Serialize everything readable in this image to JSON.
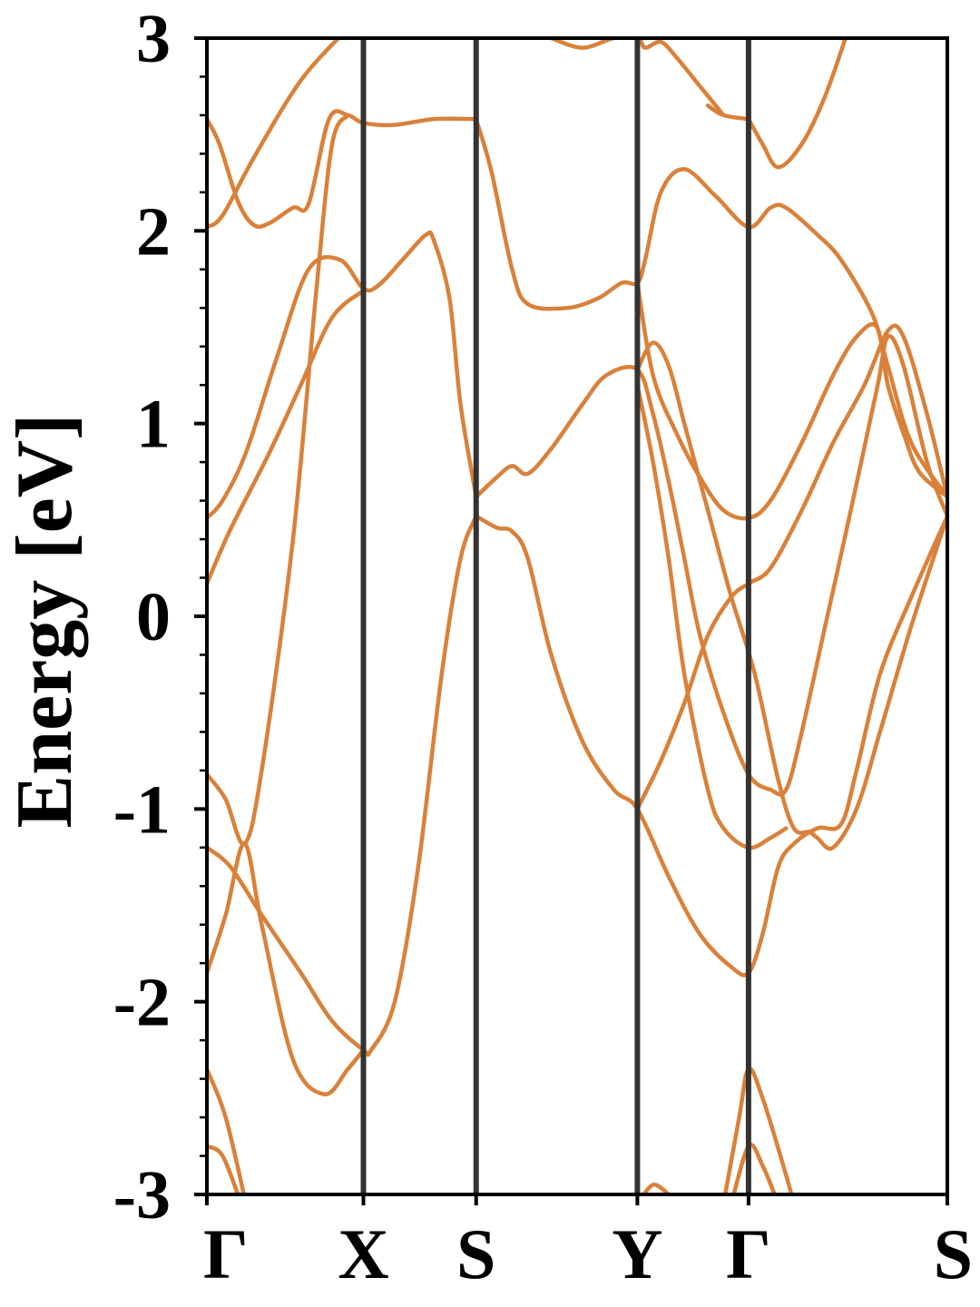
{
  "chart_data": {
    "type": "line",
    "title": "",
    "xlabel": "",
    "ylabel": "Energy [eV]",
    "ylim": [
      -3,
      3
    ],
    "xlim": [
      0,
      4.73
    ],
    "yticks": [
      {
        "value": 3,
        "label": "3"
      },
      {
        "value": 2,
        "label": "2"
      },
      {
        "value": 1,
        "label": "1"
      },
      {
        "value": 0,
        "label": "0"
      },
      {
        "value": -1,
        "label": "-1"
      },
      {
        "value": -2,
        "label": "-2"
      },
      {
        "value": -3,
        "label": "-3"
      }
    ],
    "yminor_step": 0.2,
    "kpoints": [
      {
        "label": "Γ",
        "x": 0.0
      },
      {
        "label": "X",
        "x": 1.0
      },
      {
        "label": "S",
        "x": 1.72
      },
      {
        "label": "Y",
        "x": 2.75
      },
      {
        "label": "Γ",
        "x": 3.46
      },
      {
        "label": "S",
        "x": 4.73
      }
    ],
    "grid": false,
    "line_color": "#d9813a",
    "bright_line_color": "#f08020",
    "series": [
      {
        "values": [
          [
            0,
            2.02
          ],
          [
            0.1,
            2.08
          ],
          [
            0.3,
            2.38
          ],
          [
            0.6,
            2.78
          ],
          [
            0.9,
            3.05
          ]
        ]
      },
      {
        "values": [
          [
            0,
            2.58
          ],
          [
            0.08,
            2.45
          ],
          [
            0.2,
            2.15
          ],
          [
            0.3,
            2.03
          ],
          [
            0.4,
            2.04
          ],
          [
            0.55,
            2.12
          ],
          [
            0.65,
            2.14
          ],
          [
            0.78,
            2.58
          ],
          [
            0.9,
            2.6
          ],
          [
            1.0,
            2.56
          ],
          [
            1.2,
            2.55
          ],
          [
            1.45,
            2.58
          ],
          [
            1.72,
            2.58
          ]
        ]
      },
      {
        "values": [
          [
            0,
            0.51
          ],
          [
            0.1,
            0.6
          ],
          [
            0.25,
            0.85
          ],
          [
            0.45,
            1.35
          ],
          [
            0.65,
            1.8
          ],
          [
            0.85,
            1.85
          ],
          [
            1.0,
            1.7
          ],
          [
            1.1,
            1.72
          ],
          [
            1.25,
            1.85
          ],
          [
            1.4,
            1.98
          ],
          [
            1.45,
            1.95
          ],
          [
            1.55,
            1.65
          ],
          [
            1.62,
            1.1
          ],
          [
            1.72,
            0.62
          ]
        ]
      },
      {
        "values": [
          [
            0,
            0.17
          ],
          [
            0.15,
            0.45
          ],
          [
            0.4,
            0.85
          ],
          [
            0.6,
            1.2
          ],
          [
            0.8,
            1.55
          ],
          [
            1.0,
            1.69
          ]
        ]
      },
      {
        "values": [
          [
            0,
            -0.82
          ],
          [
            0.12,
            -0.95
          ],
          [
            0.24,
            -1.18
          ],
          [
            0.35,
            -0.8
          ],
          [
            0.55,
            0.4
          ],
          [
            0.7,
            1.7
          ],
          [
            0.8,
            2.45
          ],
          [
            0.9,
            2.6
          ]
        ]
      },
      {
        "values": [
          [
            0,
            -1.2
          ],
          [
            0.15,
            -1.3
          ],
          [
            0.35,
            -1.55
          ],
          [
            0.6,
            -1.85
          ],
          [
            0.8,
            -2.1
          ],
          [
            1.0,
            -2.25
          ],
          [
            1.05,
            -2.25
          ],
          [
            1.2,
            -2.0
          ],
          [
            1.35,
            -1.3
          ],
          [
            1.5,
            -0.3
          ],
          [
            1.62,
            0.3
          ],
          [
            1.72,
            0.52
          ]
        ]
      },
      {
        "values": [
          [
            0,
            -1.85
          ],
          [
            0.12,
            -1.55
          ],
          [
            0.24,
            -1.18
          ],
          [
            0.35,
            -1.6
          ],
          [
            0.55,
            -2.3
          ],
          [
            0.75,
            -2.48
          ],
          [
            0.9,
            -2.35
          ],
          [
            1.0,
            -2.25
          ]
        ]
      },
      {
        "values": [
          [
            0,
            -2.35
          ],
          [
            0.12,
            -2.6
          ],
          [
            0.25,
            -3.05
          ]
        ]
      },
      {
        "values": [
          [
            0,
            -2.75
          ],
          [
            0.1,
            -2.8
          ],
          [
            0.22,
            -3.05
          ]
        ]
      },
      {
        "values": [
          [
            1.72,
            2.58
          ],
          [
            1.82,
            2.3
          ],
          [
            1.95,
            1.8
          ],
          [
            2.05,
            1.62
          ],
          [
            2.3,
            1.6
          ],
          [
            2.5,
            1.65
          ],
          [
            2.65,
            1.73
          ],
          [
            2.75,
            1.73
          ],
          [
            2.8,
            1.85
          ],
          [
            2.9,
            2.2
          ],
          [
            3.05,
            2.32
          ],
          [
            3.25,
            2.18
          ],
          [
            3.46,
            2.02
          ],
          [
            3.6,
            2.12
          ],
          [
            3.7,
            2.12
          ],
          [
            3.9,
            1.98
          ],
          [
            4.05,
            1.85
          ],
          [
            4.25,
            1.57
          ],
          [
            4.35,
            1.3
          ],
          [
            4.5,
            0.9
          ],
          [
            4.73,
            0.62
          ]
        ]
      },
      {
        "values": [
          [
            1.72,
            0.62
          ],
          [
            1.85,
            0.72
          ],
          [
            1.95,
            0.78
          ],
          [
            2.05,
            0.74
          ],
          [
            2.2,
            0.87
          ],
          [
            2.4,
            1.1
          ],
          [
            2.55,
            1.25
          ],
          [
            2.75,
            1.28
          ],
          [
            2.85,
            1.05
          ],
          [
            2.95,
            0.7
          ],
          [
            3.05,
            0.3
          ],
          [
            3.15,
            -0.1
          ],
          [
            3.3,
            -0.5
          ],
          [
            3.46,
            -0.82
          ],
          [
            3.6,
            -0.9
          ],
          [
            3.7,
            -0.9
          ],
          [
            3.8,
            -0.6
          ],
          [
            3.95,
            -0.05
          ],
          [
            4.1,
            0.5
          ],
          [
            4.28,
            1.18
          ],
          [
            4.35,
            1.45
          ],
          [
            4.45,
            1.3
          ],
          [
            4.6,
            0.8
          ],
          [
            4.73,
            0.52
          ]
        ]
      },
      {
        "values": [
          [
            1.72,
            0.52
          ],
          [
            1.85,
            0.46
          ],
          [
            1.95,
            0.44
          ],
          [
            2.05,
            0.3
          ],
          [
            2.2,
            -0.2
          ],
          [
            2.4,
            -0.65
          ],
          [
            2.6,
            -0.9
          ],
          [
            2.75,
            -1.0
          ],
          [
            2.95,
            -1.35
          ],
          [
            3.15,
            -1.65
          ],
          [
            3.35,
            -1.82
          ],
          [
            3.46,
            -1.85
          ],
          [
            3.55,
            -1.65
          ],
          [
            3.65,
            -1.3
          ],
          [
            3.75,
            -1.18
          ],
          [
            3.9,
            -1.1
          ],
          [
            4.05,
            -1.08
          ],
          [
            4.15,
            -0.8
          ],
          [
            4.3,
            -0.3
          ],
          [
            4.5,
            0.1
          ],
          [
            4.73,
            0.52
          ]
        ]
      },
      {
        "values": [
          [
            2.75,
            1.73
          ],
          [
            2.85,
            1.25
          ],
          [
            3.0,
            0.95
          ],
          [
            3.15,
            0.72
          ],
          [
            3.3,
            0.55
          ],
          [
            3.46,
            0.51
          ],
          [
            3.6,
            0.6
          ],
          [
            3.8,
            0.9
          ],
          [
            4.0,
            1.25
          ],
          [
            4.15,
            1.45
          ],
          [
            4.28,
            1.5
          ],
          [
            4.35,
            1.2
          ],
          [
            4.45,
            0.95
          ],
          [
            4.55,
            0.75
          ],
          [
            4.73,
            0.62
          ]
        ]
      },
      {
        "values": [
          [
            2.75,
            1.28
          ],
          [
            2.85,
            1.42
          ],
          [
            2.95,
            1.3
          ],
          [
            3.05,
            1.0
          ],
          [
            3.2,
            0.55
          ],
          [
            3.35,
            0.1
          ],
          [
            3.5,
            -0.3
          ],
          [
            3.65,
            -0.85
          ],
          [
            3.75,
            -1.1
          ],
          [
            3.85,
            -1.12
          ],
          [
            3.9,
            -1.15
          ],
          [
            4.0,
            -1.2
          ],
          [
            4.15,
            -1.0
          ],
          [
            4.3,
            -0.6
          ],
          [
            4.5,
            -0.05
          ],
          [
            4.73,
            0.52
          ]
        ]
      },
      {
        "values": [
          [
            2.75,
            1.2
          ],
          [
            2.85,
            0.8
          ],
          [
            2.95,
            0.3
          ],
          [
            3.05,
            -0.3
          ],
          [
            3.2,
            -0.9
          ],
          [
            3.3,
            -1.1
          ],
          [
            3.46,
            -1.2
          ],
          [
            3.6,
            -1.15
          ],
          [
            3.7,
            -1.1
          ]
        ]
      },
      {
        "values": [
          [
            2.75,
            -1.0
          ],
          [
            2.9,
            -0.75
          ],
          [
            3.05,
            -0.45
          ],
          [
            3.2,
            -0.1
          ],
          [
            3.35,
            0.1
          ],
          [
            3.46,
            0.17
          ],
          [
            3.6,
            0.25
          ],
          [
            3.8,
            0.55
          ],
          [
            4.0,
            0.9
          ],
          [
            4.2,
            1.2
          ],
          [
            4.35,
            1.48
          ],
          [
            4.45,
            1.45
          ],
          [
            4.6,
            1.05
          ],
          [
            4.73,
            0.62
          ]
        ]
      },
      {
        "values": [
          [
            3.46,
            2.58
          ],
          [
            3.55,
            2.45
          ],
          [
            3.65,
            2.33
          ],
          [
            3.8,
            2.45
          ],
          [
            3.95,
            2.7
          ],
          [
            4.1,
            3.05
          ]
        ]
      },
      {
        "values": [
          [
            3.2,
            2.65
          ],
          [
            3.3,
            2.6
          ],
          [
            3.46,
            2.58
          ]
        ]
      },
      {
        "values": [
          [
            2.2,
            3.0
          ],
          [
            2.4,
            2.95
          ],
          [
            2.6,
            3.0
          ],
          [
            2.75,
            3.0
          ],
          [
            2.8,
            2.95
          ],
          [
            2.9,
            2.98
          ],
          [
            3.0,
            2.9
          ],
          [
            3.15,
            2.75
          ],
          [
            3.3,
            2.6
          ]
        ]
      },
      {
        "values": [
          [
            3.3,
            -3.05
          ],
          [
            3.4,
            -2.6
          ],
          [
            3.46,
            -2.35
          ],
          [
            3.55,
            -2.5
          ],
          [
            3.7,
            -2.9
          ],
          [
            3.75,
            -3.05
          ]
        ]
      },
      {
        "values": [
          [
            3.35,
            -3.05
          ],
          [
            3.46,
            -2.75
          ],
          [
            3.55,
            -2.85
          ],
          [
            3.65,
            -3.05
          ]
        ]
      },
      {
        "values": [
          [
            2.75,
            -3.05
          ],
          [
            2.85,
            -2.95
          ],
          [
            2.95,
            -3.0
          ]
        ]
      }
    ]
  }
}
